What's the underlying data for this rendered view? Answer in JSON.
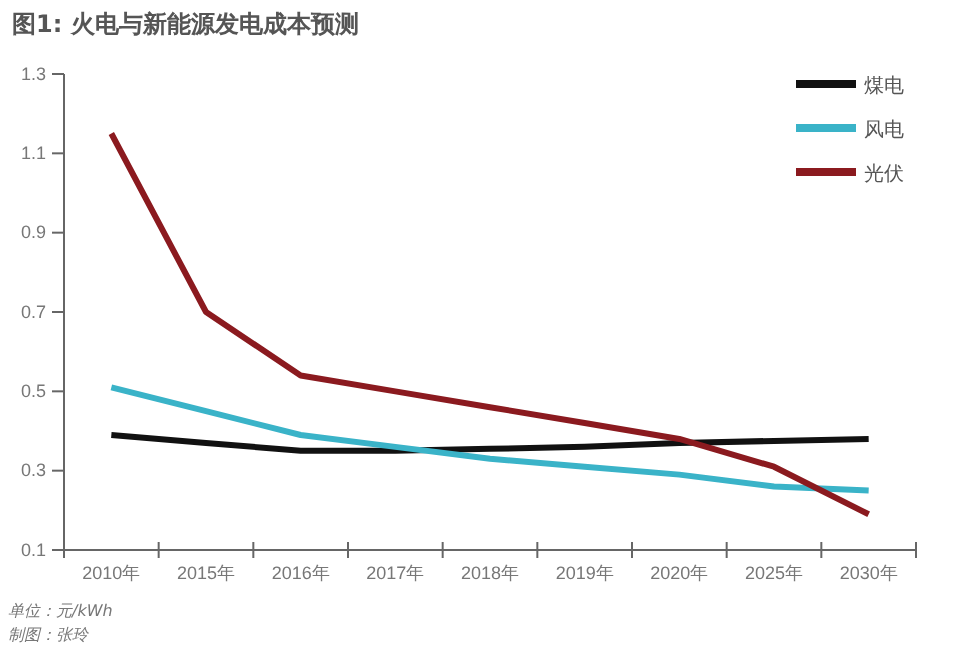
{
  "chart_data": {
    "type": "line",
    "title": "图1: 火电与新能源发电成本预测",
    "categories": [
      "2010年",
      "2015年",
      "2016年",
      "2017年",
      "2018年",
      "2019年",
      "2020年",
      "2025年",
      "2030年"
    ],
    "series": [
      {
        "name": "煤电",
        "color": "#111111",
        "values": [
          0.39,
          0.37,
          0.35,
          0.35,
          0.355,
          0.36,
          0.37,
          0.375,
          0.38
        ]
      },
      {
        "name": "风电",
        "color": "#3ab3c8",
        "values": [
          0.51,
          0.45,
          0.39,
          0.36,
          0.33,
          0.31,
          0.29,
          0.26,
          0.25
        ]
      },
      {
        "name": "光伏",
        "color": "#8b1a1f",
        "values": [
          1.15,
          0.7,
          0.54,
          0.5,
          0.46,
          0.42,
          0.38,
          0.31,
          0.19
        ]
      }
    ],
    "ylim": [
      0.1,
      1.3
    ],
    "yticks": [
      {
        "value": 0.1,
        "label": "0.1"
      },
      {
        "value": 0.3,
        "label": "0.3"
      },
      {
        "value": 0.5,
        "label": "0.5"
      },
      {
        "value": 0.7,
        "label": "0.7"
      },
      {
        "value": 0.9,
        "label": "0.9"
      },
      {
        "value": 1.1,
        "label": "1.1"
      },
      {
        "value": 1.3,
        "label": "1.3"
      }
    ],
    "grid": false,
    "legend": "top right",
    "marker": "none",
    "line_style": "solid",
    "annotations": [
      "单位：元/kWh",
      "制图：张玲"
    ]
  }
}
